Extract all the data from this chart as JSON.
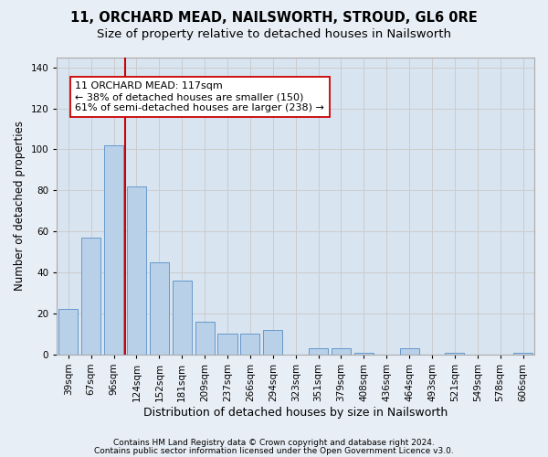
{
  "title": "11, ORCHARD MEAD, NAILSWORTH, STROUD, GL6 0RE",
  "subtitle": "Size of property relative to detached houses in Nailsworth",
  "xlabel": "Distribution of detached houses by size in Nailsworth",
  "ylabel": "Number of detached properties",
  "categories": [
    "39sqm",
    "67sqm",
    "96sqm",
    "124sqm",
    "152sqm",
    "181sqm",
    "209sqm",
    "237sqm",
    "266sqm",
    "294sqm",
    "323sqm",
    "351sqm",
    "379sqm",
    "408sqm",
    "436sqm",
    "464sqm",
    "493sqm",
    "521sqm",
    "549sqm",
    "578sqm",
    "606sqm"
  ],
  "values": [
    22,
    57,
    102,
    82,
    45,
    36,
    16,
    10,
    10,
    12,
    0,
    3,
    3,
    1,
    0,
    3,
    0,
    1,
    0,
    0,
    1
  ],
  "bar_color": "#b8d0e8",
  "bar_edge_color": "#6699cc",
  "vline_color": "#cc0000",
  "annotation_text": "11 ORCHARD MEAD: 117sqm\n← 38% of detached houses are smaller (150)\n61% of semi-detached houses are larger (238) →",
  "annotation_box_color": "#ffffff",
  "annotation_box_edge": "#cc0000",
  "ylim": [
    0,
    145
  ],
  "yticks": [
    0,
    20,
    40,
    60,
    80,
    100,
    120,
    140
  ],
  "grid_color": "#cccccc",
  "background_color": "#e8eef5",
  "plot_bg_color": "#d8e4f0",
  "footer_line1": "Contains HM Land Registry data © Crown copyright and database right 2024.",
  "footer_line2": "Contains public sector information licensed under the Open Government Licence v3.0.",
  "title_fontsize": 10.5,
  "subtitle_fontsize": 9.5,
  "xlabel_fontsize": 9,
  "ylabel_fontsize": 8.5,
  "tick_fontsize": 7.5,
  "footer_fontsize": 6.5,
  "annotation_fontsize": 8
}
